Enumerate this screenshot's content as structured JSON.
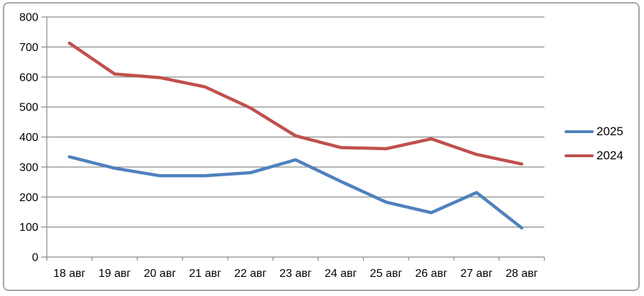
{
  "chart_data": {
    "type": "line",
    "title": "",
    "xlabel": "",
    "ylabel": "",
    "categories": [
      "18 авг",
      "19 авг",
      "20 авг",
      "21 авг",
      "22 авг",
      "23 авг",
      "24 авг",
      "25 авг",
      "26 авг",
      "27 авг",
      "28 авг"
    ],
    "series": [
      {
        "name": "2025",
        "color": "#4F81BD",
        "values": [
          334,
          296,
          271,
          271,
          281,
          324,
          252,
          183,
          148,
          215,
          97
        ]
      },
      {
        "name": "2024",
        "color": "#C0504D",
        "values": [
          713,
          610,
          598,
          567,
          497,
          404,
          365,
          361,
          394,
          342,
          310
        ]
      }
    ],
    "ylim": [
      0,
      800
    ],
    "y_tick_interval": 100,
    "y_tick_labels": [
      "0",
      "100",
      "200",
      "300",
      "400",
      "500",
      "600",
      "700",
      "800"
    ],
    "grid": true,
    "legend_position": "right"
  },
  "colors": {
    "gridline": "#8a8a8a",
    "axis": "#8a8a8a",
    "frame_border": "#a6a6a6",
    "background": "#ffffff",
    "text": "#000000"
  }
}
